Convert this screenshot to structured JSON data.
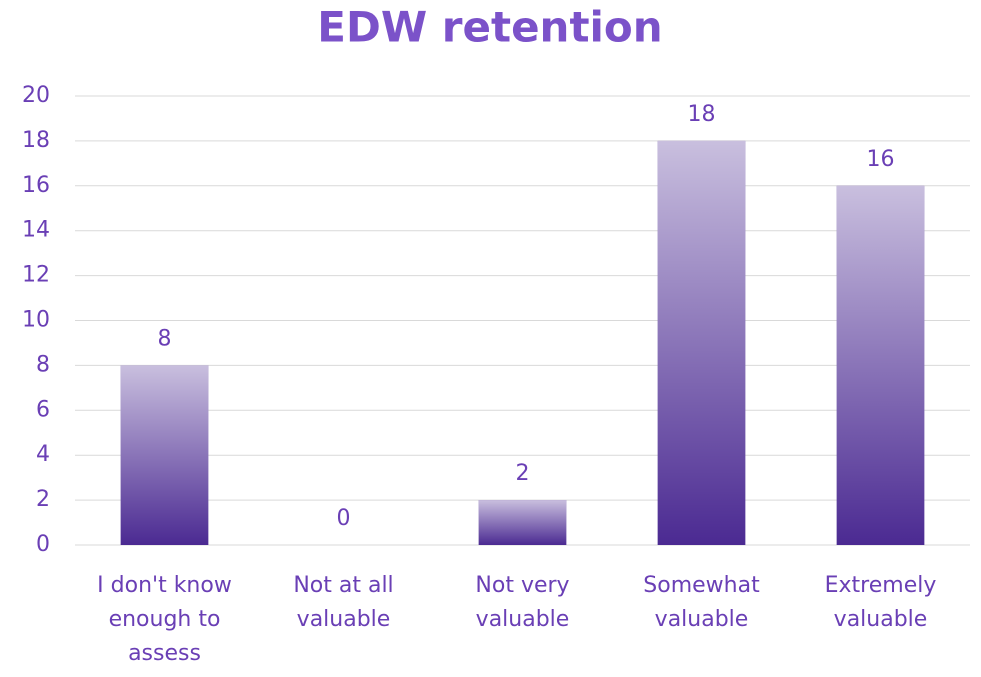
{
  "chart_data": {
    "type": "bar",
    "title": "EDW retention",
    "categories": [
      "I don't know enough to assess",
      "Not at all valuable",
      "Not very valuable",
      "Somewhat valuable",
      "Extremely valuable"
    ],
    "values": [
      8,
      0,
      2,
      18,
      16
    ],
    "color": "#4b2a92",
    "ylim": [
      0,
      20
    ],
    "yticks": [
      0,
      2,
      4,
      6,
      8,
      10,
      12,
      14,
      16,
      18,
      20
    ],
    "grid": true
  }
}
